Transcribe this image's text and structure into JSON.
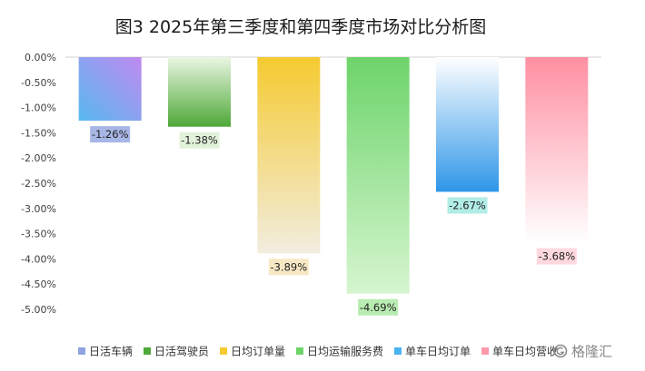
{
  "chart_data": {
    "type": "bar",
    "title": "图3 2025年第三季度和第四季度市场对比分析图",
    "xlabel": "",
    "ylabel": "",
    "ylim": [
      -0.05,
      0
    ],
    "y_ticks": [
      "0.00%",
      "-0.50%",
      "-1.00%",
      "-1.50%",
      "-2.00%",
      "-2.50%",
      "-3.00%",
      "-3.50%",
      "-4.00%",
      "-4.50%",
      "-5.00%"
    ],
    "series": [
      {
        "name": "日活车辆",
        "value": -0.0126,
        "label": "-1.26%",
        "color_top": "#c08af0",
        "color_bottom": "#58b9f0",
        "label_bg": "#a8b6e6"
      },
      {
        "name": "日活驾驶员",
        "value": -0.0138,
        "label": "-1.38%",
        "color_top": "#eaf6e2",
        "color_bottom": "#4fa838",
        "label_bg": "#e2f2da"
      },
      {
        "name": "日均订单量",
        "value": -0.0389,
        "label": "-3.89%",
        "color_top": "#f5ca30",
        "color_bottom": "#f2eddf",
        "label_bg": "#f7e8c4"
      },
      {
        "name": "日均运输服务费",
        "value": -0.0469,
        "label": "-4.69%",
        "color_top": "#6dd46a",
        "color_bottom": "#d6f5d0",
        "label_bg": "#b8ecb2"
      },
      {
        "name": "单车日均订单",
        "value": -0.0267,
        "label": "-2.67%",
        "color_top": "#ffffff",
        "color_bottom": "#2e96e8",
        "label_bg": "#b2ece6"
      },
      {
        "name": "单车日均营收",
        "value": -0.0368,
        "label": "-3.68%",
        "color_top": "#ff8fa2",
        "color_bottom": "#ffffff",
        "label_bg": "#ffd8de"
      }
    ],
    "legend_position": "bottom",
    "grid": false
  },
  "legend": [
    {
      "label": "日活车辆",
      "color": "#8fa4e0"
    },
    {
      "label": "日活驾驶员",
      "color": "#4fa838"
    },
    {
      "label": "日均订单量",
      "color": "#f5ca30"
    },
    {
      "label": "日均运输服务费",
      "color": "#6dd46a"
    },
    {
      "label": "单车日均订单",
      "color": "#4ab3f0"
    },
    {
      "label": "单车日均营收",
      "color": "#ff9aab"
    }
  ],
  "watermark": {
    "text": "格隆汇"
  }
}
